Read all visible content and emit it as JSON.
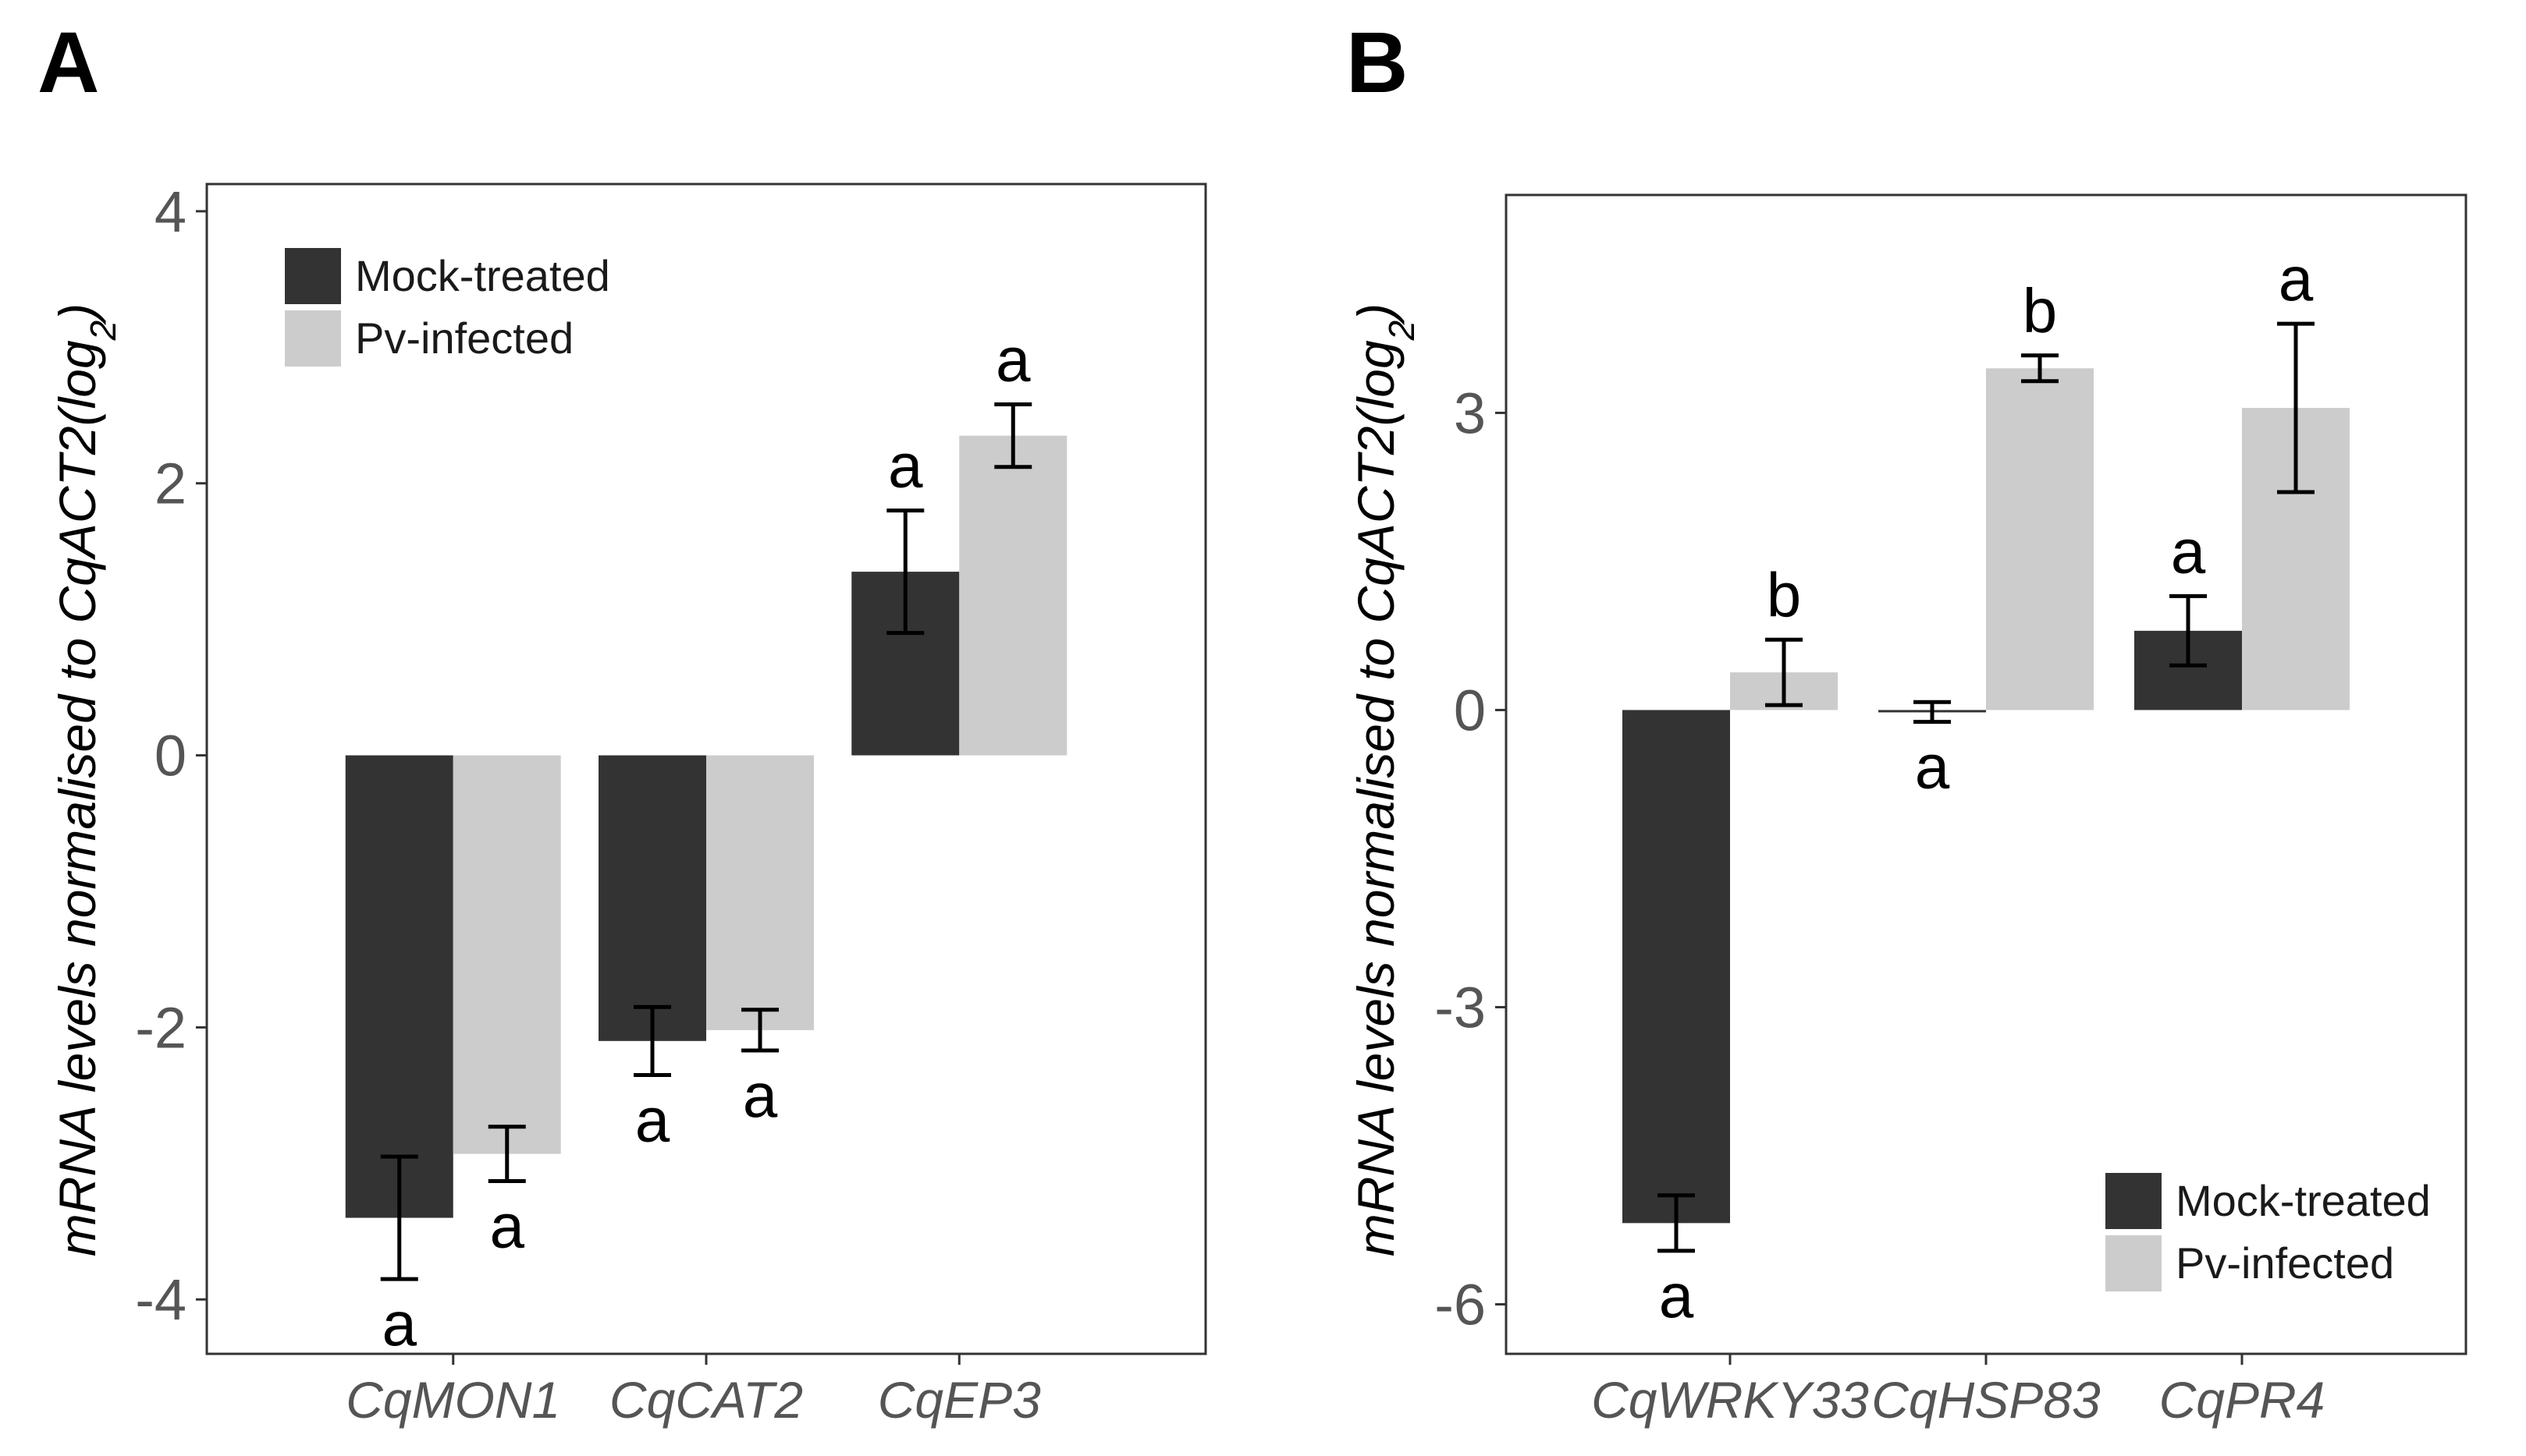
{
  "panels": [
    {
      "label": "A",
      "ylabel_parts": {
        "pre": "mRNA levels normalised to CqACT2(log",
        "sub": "2",
        "post": ")"
      },
      "legend": {
        "position": "top-left"
      }
    },
    {
      "label": "B",
      "ylabel_parts": {
        "pre": "mRNA levels normalised to CqACT2(log",
        "sub": "2",
        "post": ")"
      },
      "legend": {
        "position": "bottom-right"
      }
    }
  ],
  "chart_data": [
    {
      "type": "bar",
      "panel": "A",
      "title": "",
      "xlabel": "",
      "ylabel": "mRNA levels normalised to CqACT2(log2)",
      "categories": [
        "CqMON1",
        "CqCAT2",
        "CqEP3"
      ],
      "ylim": [
        -4.4,
        4.2
      ],
      "yticks": [
        -4,
        -2,
        0,
        2,
        4
      ],
      "ytick_labels": [
        "-4",
        "-2",
        "0",
        "2",
        "4"
      ],
      "grid": false,
      "legend_position": "top-left",
      "series": [
        {
          "name": "Mock-treated",
          "color": "#333333",
          "values": [
            -3.4,
            -2.1,
            1.35
          ],
          "errors": [
            0.45,
            0.25,
            0.45
          ],
          "letters": [
            "a",
            "a",
            "a"
          ]
        },
        {
          "name": "Pv-infected",
          "color": "#cccccc",
          "values": [
            -2.93,
            -2.02,
            2.35
          ],
          "errors": [
            0.2,
            0.15,
            0.23
          ],
          "letters": [
            "a",
            "a",
            "a"
          ]
        }
      ]
    },
    {
      "type": "bar",
      "panel": "B",
      "title": "",
      "xlabel": "",
      "ylabel": "mRNA levels normalised to CqACT2(log2)",
      "categories": [
        "CqWRKY33",
        "CqHSP83",
        "CqPR4"
      ],
      "ylim": [
        -6.5,
        5.2
      ],
      "yticks": [
        -6,
        -3,
        0,
        3
      ],
      "ytick_labels": [
        "-6",
        "-3",
        "0",
        "3"
      ],
      "grid": false,
      "legend_position": "bottom-right",
      "series": [
        {
          "name": "Mock-treated",
          "color": "#333333",
          "values": [
            -5.18,
            -0.02,
            0.8
          ],
          "errors": [
            0.28,
            0.1,
            0.35
          ],
          "letters": [
            "a",
            "a",
            "a"
          ]
        },
        {
          "name": "Pv-infected",
          "color": "#cccccc",
          "values": [
            0.38,
            3.45,
            3.05
          ],
          "errors": [
            0.33,
            0.13,
            0.85
          ],
          "letters": [
            "b",
            "b",
            "a"
          ]
        }
      ]
    }
  ]
}
